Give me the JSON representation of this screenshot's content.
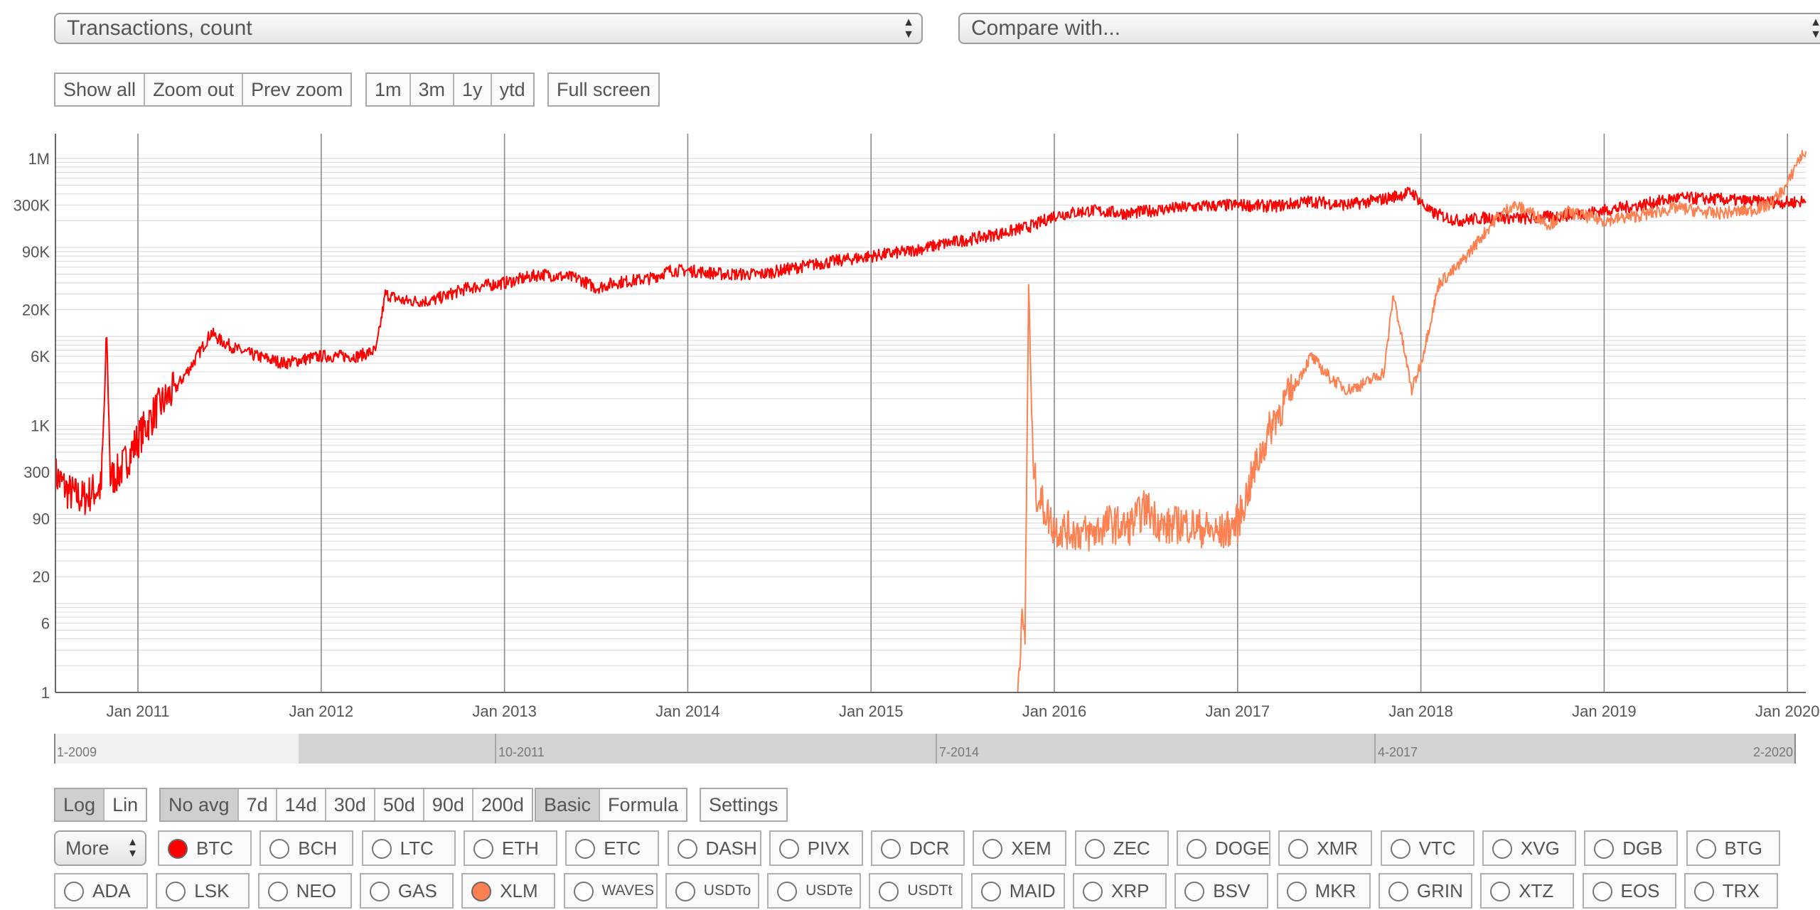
{
  "metric_select": {
    "value": "Transactions, count"
  },
  "compare_select": {
    "value": "Compare with..."
  },
  "zoom_buttons": [
    "Show all",
    "Zoom out",
    "Prev zoom"
  ],
  "range_buttons": [
    "1m",
    "3m",
    "1y",
    "ytd"
  ],
  "fullscreen_button": "Full screen",
  "scale_buttons": [
    {
      "label": "Log",
      "active": true
    },
    {
      "label": "Lin",
      "active": false
    }
  ],
  "avg_buttons": [
    {
      "label": "No avg",
      "active": true
    },
    {
      "label": "7d"
    },
    {
      "label": "14d"
    },
    {
      "label": "30d"
    },
    {
      "label": "50d"
    },
    {
      "label": "90d"
    },
    {
      "label": "200d"
    }
  ],
  "mode_buttons": [
    {
      "label": "Basic",
      "active": true
    },
    {
      "label": "Formula",
      "active": false
    }
  ],
  "settings_button": "Settings",
  "more_select": "More",
  "navigator": {
    "labels": [
      "1-2009",
      "10-2011",
      "7-2014",
      "4-2017",
      "2-2020"
    ]
  },
  "coins_row1": [
    {
      "label": "BTC",
      "color": "#ff0000",
      "selected": true
    },
    {
      "label": "BCH"
    },
    {
      "label": "LTC"
    },
    {
      "label": "ETH"
    },
    {
      "label": "ETC"
    },
    {
      "label": "DASH"
    },
    {
      "label": "PIVX"
    },
    {
      "label": "DCR"
    },
    {
      "label": "XEM"
    },
    {
      "label": "ZEC"
    },
    {
      "label": "DOGE"
    },
    {
      "label": "XMR"
    },
    {
      "label": "VTC"
    },
    {
      "label": "XVG"
    },
    {
      "label": "DGB"
    },
    {
      "label": "BTG"
    }
  ],
  "coins_row2": [
    {
      "label": "ADA"
    },
    {
      "label": "LSK"
    },
    {
      "label": "NEO"
    },
    {
      "label": "GAS"
    },
    {
      "label": "XLM",
      "color": "#ff8050",
      "selected": true
    },
    {
      "label": "WAVES",
      "small": true
    },
    {
      "label": "USDTo",
      "small": true
    },
    {
      "label": "USDTe",
      "small": true
    },
    {
      "label": "USDTt",
      "small": true
    },
    {
      "label": "MAID"
    },
    {
      "label": "XRP"
    },
    {
      "label": "BSV"
    },
    {
      "label": "MKR"
    },
    {
      "label": "GRIN"
    },
    {
      "label": "XTZ"
    },
    {
      "label": "EOS"
    },
    {
      "label": "TRX"
    }
  ],
  "chart_data": {
    "type": "line",
    "y_scale": "log",
    "y_ticks": [
      {
        "label": "1M",
        "value": 1000000
      },
      {
        "label": "300K",
        "value": 300000
      },
      {
        "label": "90K",
        "value": 90000
      },
      {
        "label": "20K",
        "value": 20000
      },
      {
        "label": "6K",
        "value": 6000
      },
      {
        "label": "1K",
        "value": 1000
      },
      {
        "label": "300",
        "value": 300
      },
      {
        "label": "90",
        "value": 90
      },
      {
        "label": "20",
        "value": 20
      },
      {
        "label": "6",
        "value": 6
      },
      {
        "label": "1",
        "value": 1
      }
    ],
    "x_ticks": [
      "Jan 2011",
      "Jan 2012",
      "Jan 2013",
      "Jan 2014",
      "Jan 2015",
      "Jan 2016",
      "Jan 2017",
      "Jan 2018",
      "Jan 2019",
      "Jan 2020"
    ],
    "xlim": [
      2010.55,
      2020.1
    ],
    "ylim": [
      1,
      1700000
    ],
    "grid": true,
    "series": [
      {
        "name": "BTC",
        "color": "#ff0000",
        "x": [
          2010.55,
          2010.62,
          2010.7,
          2010.75,
          2010.8,
          2010.83,
          2010.85,
          2010.9,
          2010.95,
          2011.0,
          2011.1,
          2011.2,
          2011.3,
          2011.4,
          2011.45,
          2011.55,
          2011.65,
          2011.8,
          2011.9,
          2012.0,
          2012.2,
          2012.3,
          2012.35,
          2012.45,
          2012.6,
          2012.8,
          2013.0,
          2013.2,
          2013.4,
          2013.5,
          2013.6,
          2013.8,
          2013.9,
          2014.0,
          2014.2,
          2014.4,
          2014.6,
          2014.8,
          2015.0,
          2015.2,
          2015.4,
          2015.6,
          2015.75,
          2015.9,
          2016.0,
          2016.2,
          2016.4,
          2016.6,
          2016.8,
          2017.0,
          2017.2,
          2017.4,
          2017.6,
          2017.8,
          2017.95,
          2018.05,
          2018.2,
          2018.4,
          2018.6,
          2018.8,
          2019.0,
          2019.2,
          2019.4,
          2019.6,
          2019.8,
          2020.0,
          2020.1
        ],
        "y": [
          280,
          180,
          150,
          180,
          200,
          10000,
          250,
          300,
          450,
          700,
          1500,
          2500,
          5000,
          11000,
          9000,
          7000,
          6000,
          5000,
          5500,
          6000,
          6000,
          7000,
          30000,
          25000,
          25000,
          35000,
          40000,
          50000,
          45000,
          35000,
          40000,
          45000,
          55000,
          55000,
          50000,
          50000,
          60000,
          70000,
          80000,
          90000,
          110000,
          130000,
          150000,
          180000,
          230000,
          260000,
          240000,
          270000,
          290000,
          300000,
          290000,
          330000,
          300000,
          350000,
          420000,
          250000,
          200000,
          220000,
          210000,
          230000,
          260000,
          300000,
          360000,
          350000,
          330000,
          320000,
          330000
        ]
      },
      {
        "name": "XLM",
        "color": "#ff8050",
        "x": [
          2015.75,
          2015.78,
          2015.8,
          2015.82,
          2015.84,
          2015.86,
          2015.88,
          2015.9,
          2016.0,
          2016.2,
          2016.3,
          2016.4,
          2016.5,
          2016.6,
          2016.7,
          2016.8,
          2016.9,
          2017.0,
          2017.1,
          2017.2,
          2017.3,
          2017.4,
          2017.5,
          2017.6,
          2017.7,
          2017.8,
          2017.85,
          2017.95,
          2018.0,
          2018.1,
          2018.2,
          2018.4,
          2018.5,
          2018.6,
          2018.7,
          2018.8,
          2019.0,
          2019.2,
          2019.4,
          2019.6,
          2019.8,
          2019.9,
          2020.0,
          2020.05,
          2020.1
        ],
        "y": [
          1,
          1,
          1,
          6,
          4,
          40000,
          600,
          180,
          70,
          60,
          80,
          70,
          120,
          70,
          80,
          70,
          60,
          80,
          350,
          1200,
          2500,
          6000,
          3500,
          2500,
          3000,
          4000,
          30000,
          2500,
          5000,
          40000,
          60000,
          200000,
          300000,
          250000,
          180000,
          250000,
          200000,
          230000,
          280000,
          240000,
          260000,
          300000,
          500000,
          900000,
          1200000
        ]
      }
    ]
  }
}
